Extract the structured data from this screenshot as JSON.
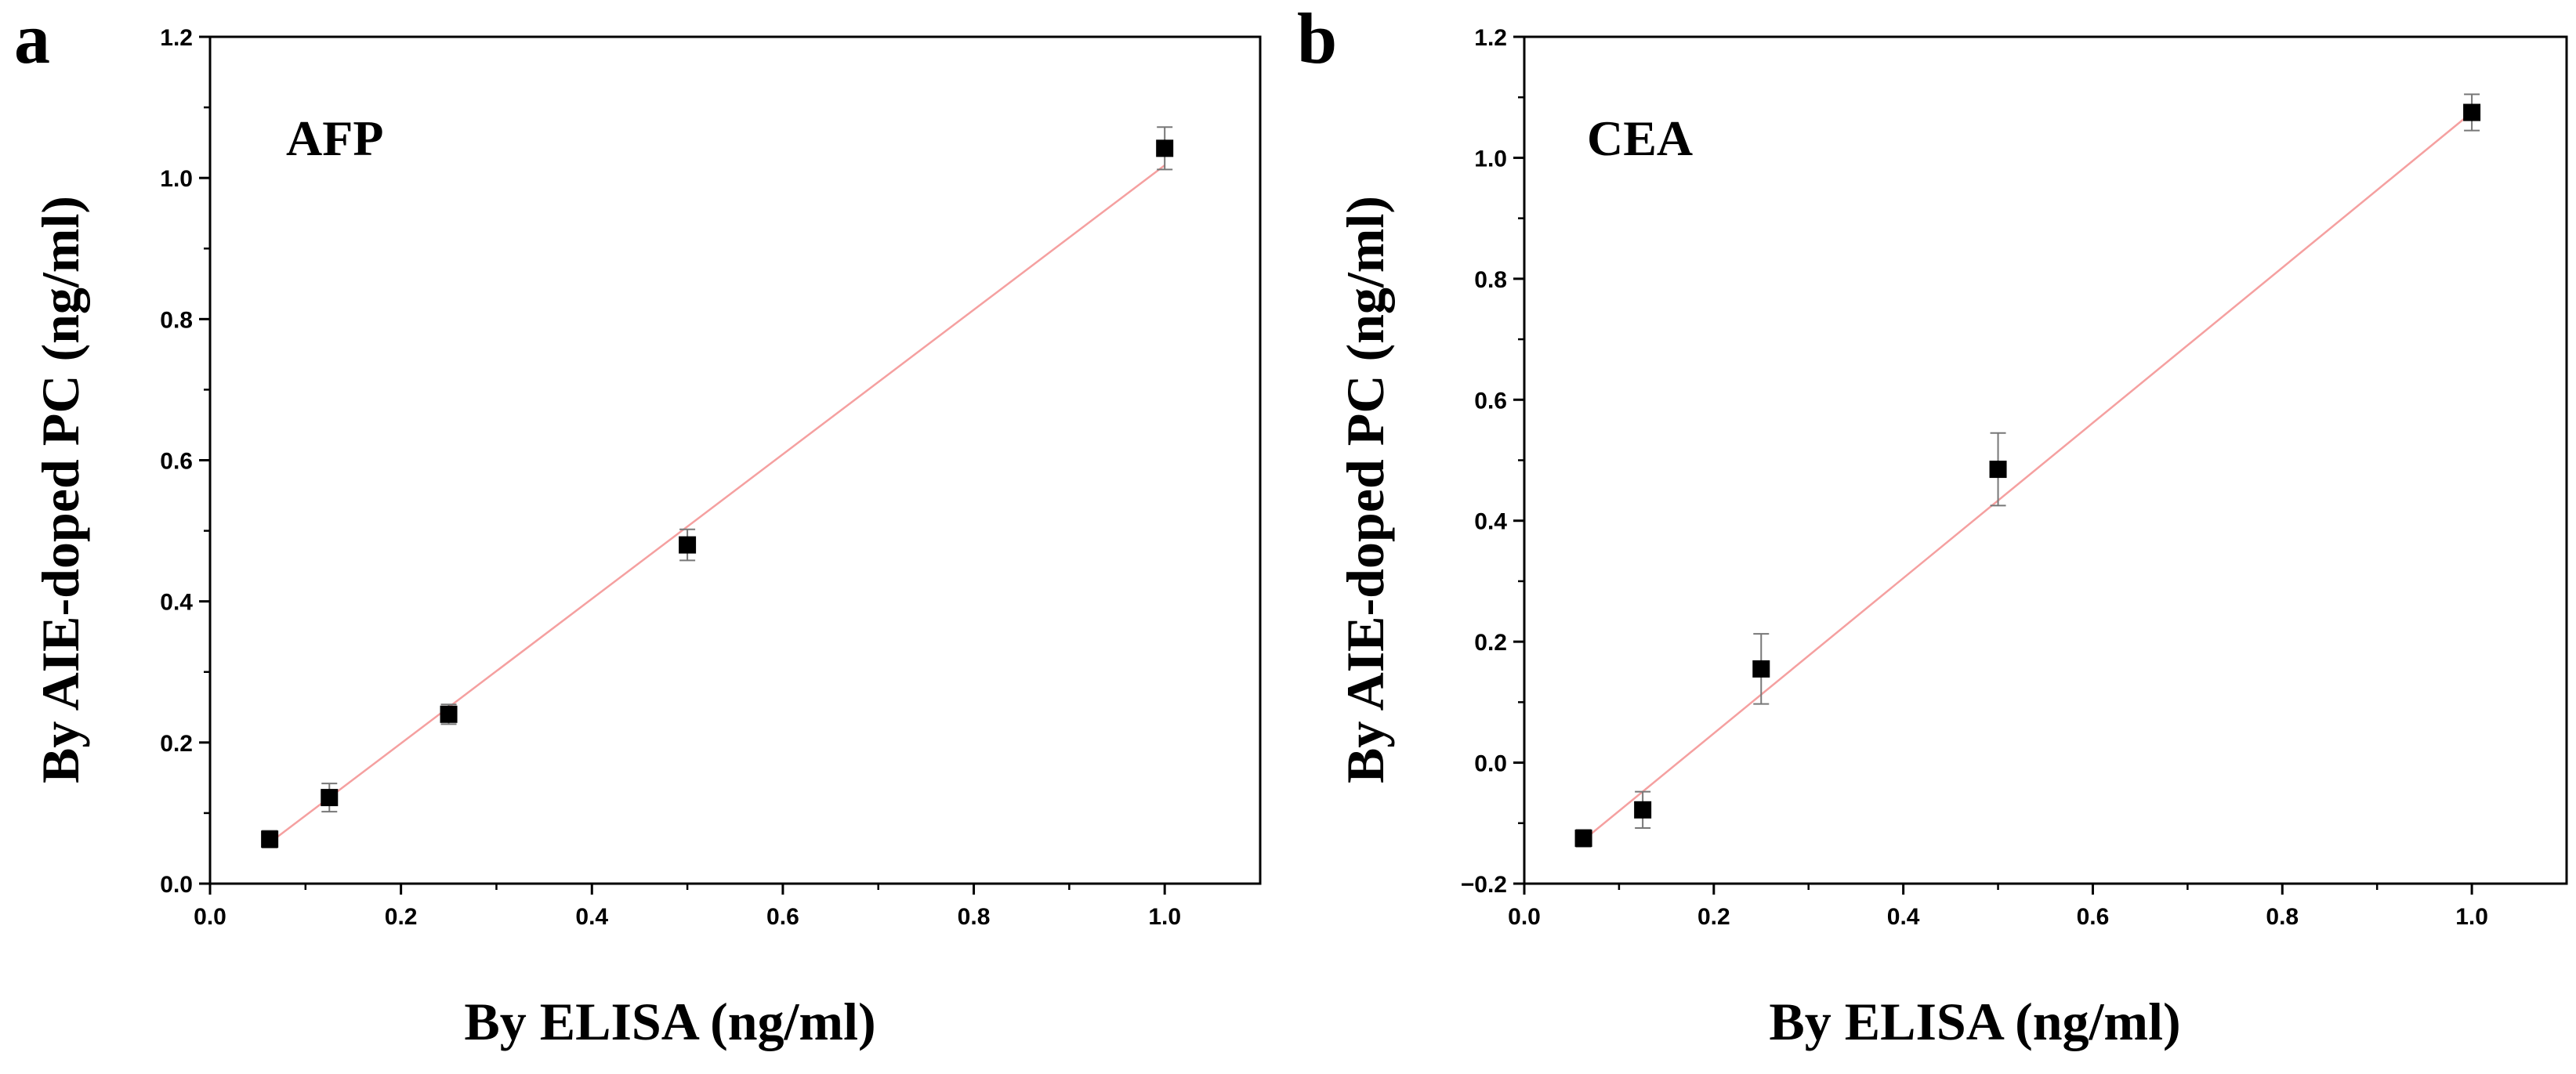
{
  "chart_data": [
    {
      "panel": "a",
      "type": "scatter",
      "label": "AFP",
      "xlabel": "By ELISA (ng/ml)",
      "ylabel": "By AIE-doped PC (ng/ml)",
      "xlim": [
        0.0,
        1.1
      ],
      "ylim": [
        0.0,
        1.2
      ],
      "xticks": [
        "0.0",
        "0.2",
        "0.4",
        "0.6",
        "0.8",
        "1.0"
      ],
      "yticks": [
        "0.0",
        "0.2",
        "0.4",
        "0.6",
        "0.8",
        "1.0",
        "1.2"
      ],
      "points": [
        {
          "x": 0.0625,
          "y": 0.063,
          "err": 0.012
        },
        {
          "x": 0.125,
          "y": 0.122,
          "err": 0.02
        },
        {
          "x": 0.25,
          "y": 0.24,
          "err": 0.014
        },
        {
          "x": 0.5,
          "y": 0.48,
          "err": 0.022
        },
        {
          "x": 1.0,
          "y": 1.042,
          "err": 0.03
        }
      ],
      "fit": {
        "x": [
          0.0625,
          1.0
        ],
        "y": [
          0.058,
          1.018
        ]
      },
      "fit_color": "#f5a0a0",
      "marker_color": "#000000"
    },
    {
      "panel": "b",
      "type": "scatter",
      "label": "CEA",
      "xlabel": "By ELISA (ng/ml)",
      "ylabel": "By AIE-doped PC (ng/ml)",
      "xlim": [
        0.0,
        1.1
      ],
      "ylim": [
        -0.2,
        1.2
      ],
      "xticks": [
        "0.0",
        "0.2",
        "0.4",
        "0.6",
        "0.8",
        "1.0"
      ],
      "yticks": [
        "−0.2",
        "0.0",
        "0.2",
        "0.4",
        "0.6",
        "0.8",
        "1.0",
        "1.2"
      ],
      "points": [
        {
          "x": 0.0625,
          "y": -0.125,
          "err": 0.014
        },
        {
          "x": 0.125,
          "y": -0.078,
          "err": 0.03
        },
        {
          "x": 0.25,
          "y": 0.155,
          "err": 0.058
        },
        {
          "x": 0.5,
          "y": 0.485,
          "err": 0.06
        },
        {
          "x": 1.0,
          "y": 1.075,
          "err": 0.03
        }
      ],
      "fit": {
        "x": [
          0.0625,
          1.0
        ],
        "y": [
          -0.128,
          1.075
        ]
      },
      "fit_color": "#f5a0a0",
      "marker_color": "#000000"
    }
  ]
}
